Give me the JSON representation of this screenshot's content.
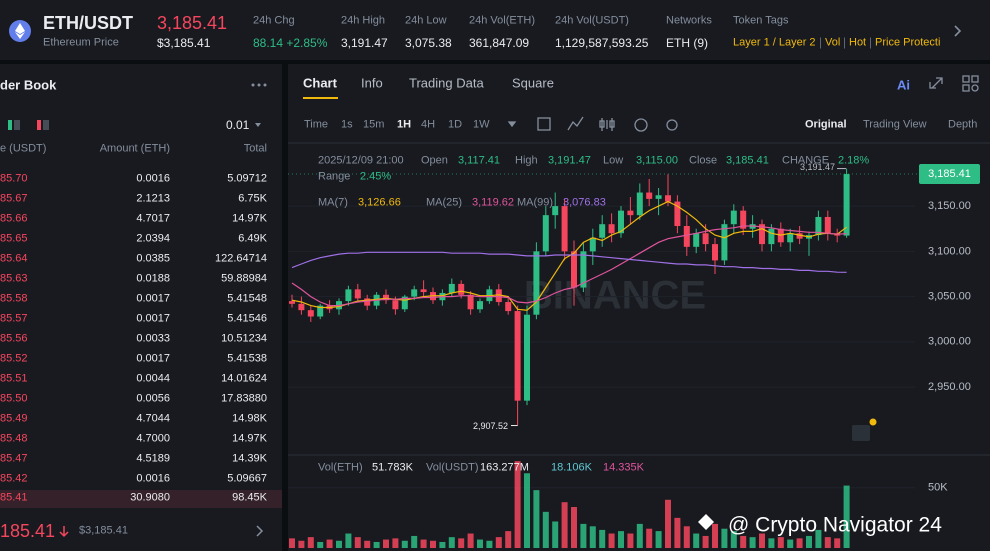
{
  "header": {
    "pair": "ETH/USDT",
    "name": "Ethereum Price",
    "price": "3,185.41",
    "price_usd": "$3,185.41",
    "stats": [
      {
        "label": "24h Chg",
        "value": "88.14 +2.85%"
      },
      {
        "label": "24h High",
        "value": "3,191.47"
      },
      {
        "label": "24h Low",
        "value": "3,075.38"
      },
      {
        "label": "24h Vol(ETH)",
        "value": "361,847.09"
      },
      {
        "label": "24h Vol(USDT)",
        "value": "1,129,587,593.25"
      },
      {
        "label": "Networks",
        "value": "ETH (9)"
      }
    ],
    "token_tags": {
      "label": "Token Tags",
      "tags": [
        "Layer 1 / Layer 2",
        "Vol",
        "Hot",
        "Price Protecti"
      ]
    }
  },
  "order_book": {
    "title": "der Book",
    "precision": "0.01",
    "columns": [
      "e (USDT)",
      "Amount (ETH)",
      "Total"
    ],
    "rows": [
      [
        "85.70",
        "0.0016",
        "5.09712"
      ],
      [
        "85.67",
        "2.1213",
        "6.75K"
      ],
      [
        "85.66",
        "4.7017",
        "14.97K"
      ],
      [
        "85.65",
        "2.0394",
        "6.49K"
      ],
      [
        "85.64",
        "0.0385",
        "122.64714"
      ],
      [
        "85.63",
        "0.0188",
        "59.88984"
      ],
      [
        "85.58",
        "0.0017",
        "5.41548"
      ],
      [
        "85.57",
        "0.0017",
        "5.41546"
      ],
      [
        "85.56",
        "0.0033",
        "10.51234"
      ],
      [
        "85.52",
        "0.0017",
        "5.41538"
      ],
      [
        "85.51",
        "0.0044",
        "14.01624"
      ],
      [
        "85.50",
        "0.0056",
        "17.83880"
      ],
      [
        "85.49",
        "4.7044",
        "14.98K"
      ],
      [
        "85.48",
        "4.7000",
        "14.97K"
      ],
      [
        "85.47",
        "4.5189",
        "14.39K"
      ],
      [
        "85.42",
        "0.0016",
        "5.09667"
      ],
      [
        "85.41",
        "30.9080",
        "98.45K"
      ]
    ],
    "last_price": "185.41",
    "last_price_usd": "$3,185.41"
  },
  "chart_panel": {
    "tabs": [
      "Chart",
      "Info",
      "Trading Data",
      "Square"
    ],
    "ai": "Ai",
    "intervals": [
      "Time",
      "1s",
      "15m",
      "1H",
      "4H",
      "1D",
      "1W"
    ],
    "views": [
      "Original",
      "Trading View",
      "Depth"
    ],
    "info": {
      "date": "2025/12/09 21:00",
      "fields": [
        {
          "label": "Open",
          "value": "3,117.41"
        },
        {
          "label": "High",
          "value": "3,191.47"
        },
        {
          "label": "Low",
          "value": "3,115.00"
        },
        {
          "label": "Close",
          "value": "3,185.41"
        },
        {
          "label": "CHANGE",
          "value": "2.18%"
        }
      ],
      "range_label": "Range",
      "range_value": "2.45%"
    },
    "watermark": "BINANCE",
    "credit": "@ Crypto Navigator 24"
  },
  "chart_data": [
    {
      "type": "candlestick",
      "up_color": "#2ebd85",
      "down_color": "#f6465d",
      "ylim": [
        2886,
        3212
      ],
      "yticks": [
        {
          "value": 2950,
          "label": "2,950.00"
        },
        {
          "value": 3000,
          "label": "3,000.00"
        },
        {
          "value": 3050,
          "label": "3,050.00"
        },
        {
          "value": 3100,
          "label": "3,100.00"
        },
        {
          "value": 3150,
          "label": "3,150.00"
        }
      ],
      "last_price": {
        "value": 3185.41,
        "label": "3,185.41"
      },
      "high_label": {
        "value": 3191.47,
        "label": "3,191.47"
      },
      "low_label": {
        "value": 2907.52,
        "label": "2,907.52"
      },
      "candles": [
        [
          3045,
          3052,
          3038,
          3042
        ],
        [
          3042,
          3050,
          3030,
          3035
        ],
        [
          3035,
          3040,
          3022,
          3028
        ],
        [
          3028,
          3042,
          3025,
          3040
        ],
        [
          3040,
          3046,
          3032,
          3036
        ],
        [
          3036,
          3048,
          3030,
          3045
        ],
        [
          3045,
          3062,
          3040,
          3058
        ],
        [
          3058,
          3064,
          3044,
          3048
        ],
        [
          3048,
          3052,
          3035,
          3040
        ],
        [
          3040,
          3055,
          3036,
          3052
        ],
        [
          3052,
          3058,
          3042,
          3046
        ],
        [
          3046,
          3050,
          3030,
          3036
        ],
        [
          3036,
          3052,
          3033,
          3050
        ],
        [
          3050,
          3062,
          3046,
          3058
        ],
        [
          3058,
          3068,
          3050,
          3055
        ],
        [
          3055,
          3060,
          3042,
          3046
        ],
        [
          3046,
          3058,
          3040,
          3054
        ],
        [
          3054,
          3070,
          3050,
          3064
        ],
        [
          3064,
          3068,
          3048,
          3052
        ],
        [
          3052,
          3056,
          3030,
          3036
        ],
        [
          3036,
          3048,
          3032,
          3045
        ],
        [
          3045,
          3062,
          3042,
          3058
        ],
        [
          3058,
          3064,
          3040,
          3044
        ],
        [
          3044,
          3050,
          3030,
          3034
        ],
        [
          3034,
          3040,
          2907.52,
          2935
        ],
        [
          2935,
          3040,
          2930,
          3030
        ],
        [
          3030,
          3110,
          3025,
          3100
        ],
        [
          3100,
          3150,
          3095,
          3140
        ],
        [
          3140,
          3165,
          3125,
          3150
        ],
        [
          3150,
          3158,
          3090,
          3100
        ],
        [
          3100,
          3112,
          3040,
          3060
        ],
        [
          3060,
          3110,
          3055,
          3100
        ],
        [
          3100,
          3125,
          3085,
          3115
        ],
        [
          3115,
          3140,
          3105,
          3130
        ],
        [
          3130,
          3142,
          3110,
          3120
        ],
        [
          3120,
          3150,
          3115,
          3145
        ],
        [
          3145,
          3160,
          3130,
          3140
        ],
        [
          3140,
          3175,
          3135,
          3165
        ],
        [
          3165,
          3180,
          3150,
          3158
        ],
        [
          3158,
          3170,
          3140,
          3162
        ],
        [
          3162,
          3185,
          3150,
          3155
        ],
        [
          3155,
          3162,
          3120,
          3128
        ],
        [
          3128,
          3140,
          3095,
          3105
        ],
        [
          3105,
          3125,
          3098,
          3120
        ],
        [
          3120,
          3130,
          3100,
          3108
        ],
        [
          3108,
          3115,
          3075,
          3090
        ],
        [
          3090,
          3135,
          3085,
          3130
        ],
        [
          3130,
          3152,
          3120,
          3145
        ],
        [
          3145,
          3150,
          3118,
          3125
        ],
        [
          3125,
          3140,
          3115,
          3130
        ],
        [
          3130,
          3135,
          3100,
          3108
        ],
        [
          3108,
          3130,
          3100,
          3125
        ],
        [
          3125,
          3132,
          3105,
          3110
        ],
        [
          3110,
          3125,
          3100,
          3120
        ],
        [
          3120,
          3128,
          3108,
          3114
        ],
        [
          3114,
          3122,
          3095,
          3118
        ],
        [
          3118,
          3145,
          3112,
          3138
        ],
        [
          3138,
          3145,
          3112,
          3120
        ],
        [
          3120,
          3125,
          3110,
          3117.41
        ],
        [
          3117.41,
          3191.47,
          3115,
          3185.41
        ]
      ],
      "series": [
        {
          "name": "MA(7)",
          "legend_value": "3,126.66",
          "color": "#f0b90b",
          "values": [
            3046,
            3044,
            3040,
            3038,
            3038,
            3039,
            3042,
            3045,
            3046,
            3047,
            3048,
            3047,
            3046,
            3048,
            3050,
            3051,
            3051,
            3054,
            3056,
            3054,
            3051,
            3051,
            3052,
            3050,
            3036,
            3035,
            3044,
            3060,
            3076,
            3092,
            3098,
            3110,
            3115,
            3112,
            3118,
            3122,
            3130,
            3138,
            3145,
            3150,
            3155,
            3150,
            3143,
            3135,
            3125,
            3118,
            3115,
            3120,
            3122,
            3122,
            3125,
            3120,
            3118,
            3120,
            3118,
            3116,
            3119,
            3120,
            3119,
            3126.66
          ]
        },
        {
          "name": "MA(25)",
          "legend_value": "3,119.62",
          "color": "#e0549c",
          "values": [
            3065,
            3058,
            3050,
            3044,
            3040,
            3040,
            3042,
            3044,
            3045,
            3046,
            3047,
            3047,
            3048,
            3048,
            3049,
            3049,
            3050,
            3050,
            3051,
            3051,
            3050,
            3050,
            3050,
            3049,
            3044,
            3043,
            3045,
            3049,
            3054,
            3058,
            3060,
            3065,
            3070,
            3075,
            3080,
            3086,
            3092,
            3098,
            3104,
            3110,
            3114,
            3116,
            3118,
            3120,
            3122,
            3124,
            3125,
            3126,
            3128,
            3128,
            3127,
            3126,
            3124,
            3123,
            3122,
            3121,
            3121,
            3120,
            3119,
            3119.62
          ]
        },
        {
          "name": "MA(99)",
          "legend_value": "3,076.83",
          "color": "#a070e6",
          "values": [
            3082,
            3086,
            3090,
            3093,
            3095,
            3097,
            3098,
            3098,
            3099,
            3099,
            3099,
            3099,
            3099,
            3099,
            3099,
            3099,
            3099,
            3098,
            3098,
            3098,
            3098,
            3097,
            3097,
            3097,
            3096,
            3095,
            3095,
            3095,
            3096,
            3096,
            3096,
            3096,
            3095,
            3094,
            3093,
            3092,
            3091,
            3090,
            3089,
            3088,
            3087,
            3086,
            3086,
            3085,
            3085,
            3084,
            3083,
            3083,
            3082,
            3082,
            3081,
            3081,
            3080,
            3080,
            3079,
            3079,
            3078,
            3078,
            3077,
            3076.83
          ]
        }
      ]
    },
    {
      "type": "bar",
      "ylim": [
        0,
        73000
      ],
      "yticks": [
        {
          "value": 50000,
          "label": "50K"
        }
      ],
      "legend": [
        {
          "label": "Vol(ETH)",
          "value": "51.783K"
        },
        {
          "label": "Vol(USDT)",
          "value": "163.277M"
        },
        {
          "value": "18.106K",
          "color": "#5fc9d3"
        },
        {
          "value": "14.335K",
          "color": "#e0549c"
        }
      ],
      "values": [
        8000,
        6000,
        9000,
        5000,
        7000,
        6000,
        12000,
        9000,
        6000,
        5000,
        7000,
        8000,
        6000,
        10000,
        7000,
        6000,
        5000,
        9000,
        8000,
        12000,
        7000,
        6000,
        9000,
        14000,
        72000,
        62000,
        48000,
        30000,
        22000,
        38000,
        34000,
        20000,
        18000,
        15000,
        12000,
        14000,
        12000,
        20000,
        16000,
        14000,
        40000,
        25000,
        18000,
        12000,
        10000,
        20000,
        16000,
        14000,
        10000,
        9000,
        12000,
        8000,
        9000,
        7000,
        8000,
        10000,
        15000,
        9000,
        8000,
        51783
      ]
    }
  ]
}
